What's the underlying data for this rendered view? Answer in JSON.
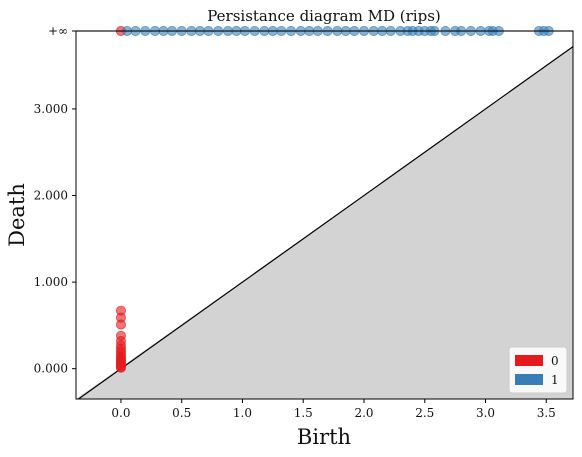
{
  "chart_data": {
    "type": "scatter",
    "title": "Persistance diagram MD (rips)",
    "xlabel": "Birth",
    "ylabel": "Death",
    "xlim": [
      -0.37,
      3.72
    ],
    "ylim": [
      -0.35,
      3.9
    ],
    "x_ticks": [
      {
        "value": 0.0,
        "label": "0.0"
      },
      {
        "value": 0.5,
        "label": "0.5"
      },
      {
        "value": 1.0,
        "label": "1.0"
      },
      {
        "value": 1.5,
        "label": "1.5"
      },
      {
        "value": 2.0,
        "label": "2.0"
      },
      {
        "value": 2.5,
        "label": "2.5"
      },
      {
        "value": 3.0,
        "label": "3.0"
      },
      {
        "value": 3.5,
        "label": "3.5"
      }
    ],
    "y_ticks": [
      {
        "value": 0.0,
        "label": "0.000"
      },
      {
        "value": 1.0,
        "label": "1.000"
      },
      {
        "value": 2.0,
        "label": "2.000"
      },
      {
        "value": 3.0,
        "label": "3.000"
      },
      {
        "value": 3.9,
        "label": "+∞"
      }
    ],
    "infinity_value": 3.9,
    "diagonal": true,
    "shaded_region_color": "#d3d3d3",
    "legend": {
      "placement": "lower-right",
      "entries": [
        {
          "label": "0",
          "color": "#e41a1c"
        },
        {
          "label": "1",
          "color": "#377eb8"
        }
      ]
    },
    "series": [
      {
        "name": "0",
        "color": "#e41a1c",
        "points": [
          {
            "x": 0.0,
            "y": 0.67
          },
          {
            "x": 0.0,
            "y": 0.59
          },
          {
            "x": 0.0,
            "y": 0.51
          },
          {
            "x": 0.0,
            "y": 0.38
          },
          {
            "x": 0.0,
            "y": 0.32
          },
          {
            "x": 0.0,
            "y": 0.27
          },
          {
            "x": 0.0,
            "y": 0.23
          },
          {
            "x": 0.0,
            "y": 0.2
          },
          {
            "x": 0.0,
            "y": 0.17
          },
          {
            "x": 0.0,
            "y": 0.14
          },
          {
            "x": 0.0,
            "y": 0.12
          },
          {
            "x": 0.0,
            "y": 0.1
          },
          {
            "x": 0.0,
            "y": 0.08
          },
          {
            "x": 0.0,
            "y": 0.06
          },
          {
            "x": 0.0,
            "y": 0.04
          },
          {
            "x": 0.0,
            "y": 0.02
          },
          {
            "x": 0.0,
            "y": 0.01
          },
          {
            "x": 0.0,
            "y": 3.9
          }
        ]
      },
      {
        "name": "1",
        "color": "#377eb8",
        "x_values": [
          0.05,
          0.12,
          0.2,
          0.28,
          0.35,
          0.42,
          0.5,
          0.58,
          0.65,
          0.72,
          0.8,
          0.88,
          0.95,
          1.02,
          1.1,
          1.18,
          1.25,
          1.32,
          1.4,
          1.48,
          1.55,
          1.62,
          1.7,
          1.78,
          1.85,
          1.92,
          2.0,
          2.08,
          2.15,
          2.22,
          2.3,
          2.36,
          2.4,
          2.45,
          2.5,
          2.55,
          2.58,
          2.67,
          2.75,
          2.8,
          2.88,
          2.96,
          3.03,
          3.06,
          3.11,
          3.44,
          3.48,
          3.52
        ],
        "y_value": 3.9
      }
    ]
  }
}
